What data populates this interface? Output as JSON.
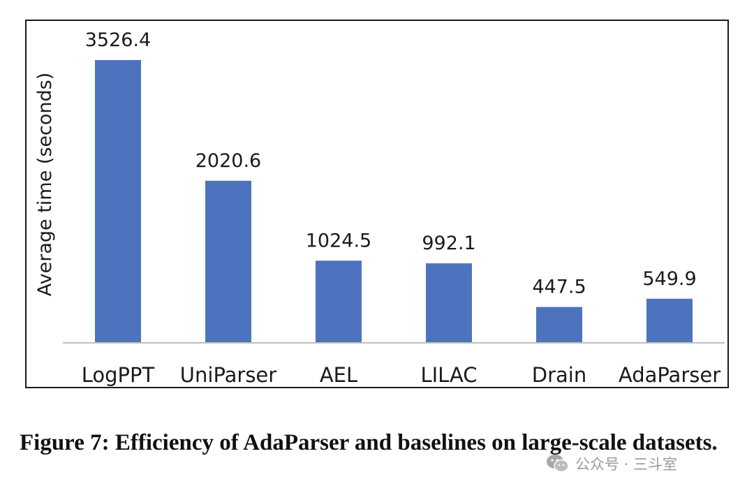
{
  "chart_data": {
    "type": "bar",
    "categories": [
      "LogPPT",
      "UniParser",
      "AEL",
      "LILAC",
      "Drain",
      "AdaParser"
    ],
    "values": [
      3526.4,
      2020.6,
      1024.5,
      992.1,
      447.5,
      549.9
    ],
    "value_labels": [
      "3526.4",
      "2020.6",
      "1024.5",
      "992.1",
      "447.5",
      "549.9"
    ],
    "ylabel": "Average time (seconds)",
    "ylim": [
      0,
      3526.4
    ],
    "bar_color": "#4e73be",
    "grid": false,
    "legend": "none"
  },
  "caption": "Figure 7: Efficiency of AdaParser and baselines on large-scale datasets.",
  "watermark": {
    "text": "公众号 · 三斗室",
    "icon": "wechat-icon"
  }
}
